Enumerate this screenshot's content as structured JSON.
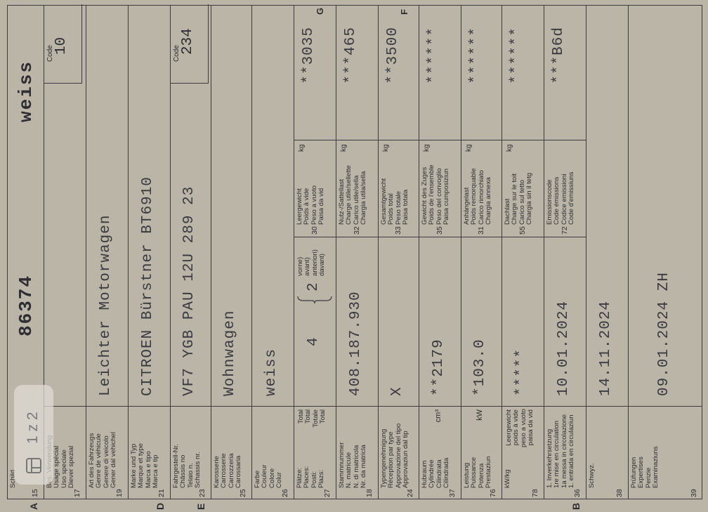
{
  "document": {
    "margin_marks": [
      "G",
      "F"
    ],
    "rows": [
      {
        "letter": "A",
        "number": "15",
        "label": [
          "Schild"
        ],
        "value": "86374",
        "extra": "weiss"
      },
      {
        "number": "17",
        "label": [
          "Bes. Verwendung",
          "Usage spécial",
          "Uso speciale",
          "Diever spezial"
        ],
        "code": {
          "label": "Code",
          "value": "10"
        }
      },
      {
        "number": "19",
        "label": [
          "Art des Fahrzeugs",
          "Genre de véhicule",
          "Genere di veicolo",
          "Gener dal vehichel"
        ],
        "value": "Leichter Motorwagen"
      },
      {
        "letter": "D",
        "number": "21",
        "label": [
          "Marke und Typ",
          "Marque et type",
          "Marca e tipo",
          "Marca e tip"
        ],
        "value": "CITROEN Bürstner BT6910"
      },
      {
        "letter": "E",
        "number": "23",
        "label": [
          "Fahrgestell-Nr.",
          "Châssis no",
          "Telaio n.",
          "Schassis nr."
        ],
        "value": "VF7 YGB PAU 12U 289 23",
        "code": {
          "label": "Code",
          "value": "234"
        }
      },
      {
        "number": "25",
        "label": [
          "Karosserie",
          "Carrosserie",
          "Carrozzeria",
          "Carossaria"
        ],
        "value": "Wohnwagen"
      },
      {
        "number": "26",
        "label": [
          "Farbe",
          "Couleur",
          "Colore",
          "Colur"
        ],
        "value": "weiss"
      },
      {
        "number": "27",
        "label": [
          "Plätze:",
          "Places:",
          "Posti:",
          "Plazs:"
        ],
        "label2": [
          "Total",
          "Total",
          "Totale",
          "Total"
        ],
        "value": "4",
        "front": {
          "value": "2",
          "label": [
            "vorne)",
            "avant)",
            "anteriori)",
            "davant)"
          ]
        },
        "right": {
          "number": "30",
          "label": [
            "Leergewicht",
            "Poids à vide",
            "Peso a vuoto",
            "Paisa da vid"
          ],
          "unit": "kg",
          "value": "**3035"
        }
      },
      {
        "number": "18",
        "label": [
          "Stammnummer",
          "N. matricule",
          "N. di matricola",
          "Nr. da matricla"
        ],
        "value": "408.187.930",
        "right": {
          "number": "32",
          "label": [
            "Nutz-/Sattellast",
            "Charge utile/sellette",
            "Carico utile/sella",
            "Chargia utila/sella"
          ],
          "unit": "kg",
          "value": "***465"
        }
      },
      {
        "number": "24",
        "label": [
          "Typengenehmigung",
          "Réception par type",
          "Approvazione del tipo",
          "Approvaziun dal tip"
        ],
        "value": "X",
        "right": {
          "number": "33",
          "label": [
            "Gesamtgewicht",
            "Poids total",
            "Peso totale",
            "Paisa totala"
          ],
          "unit": "kg",
          "value": "**3500"
        }
      },
      {
        "number": "37",
        "label": [
          "Hubraum",
          "Cylindrée",
          "Cilindrata",
          "Cilindrada"
        ],
        "unit": "cm³",
        "value": "**2179",
        "right": {
          "number": "35",
          "label": [
            "Gewicht des Zuges",
            "Poids de l'ensemble",
            "Peso del convoglio",
            "Paisa cumposiziun"
          ],
          "unit": "kg",
          "value": "******"
        }
      },
      {
        "number": "76",
        "label": [
          "Leistung",
          "Puissance",
          "Potenza",
          "Prestaziun"
        ],
        "unit": "kW",
        "value": "*103.0",
        "right": {
          "number": "31",
          "label": [
            "Anhängelast",
            "Poids remorquable",
            "Carico rimorchiato",
            "Chargia annexa"
          ],
          "unit": "kg",
          "value": "******"
        }
      },
      {
        "number": "78",
        "label": [
          "kW/kg"
        ],
        "label2": [
          "Leergewicht",
          "poids à vide",
          "peso a vuoto",
          "paisa da vid"
        ],
        "value": "*****",
        "right": {
          "number": "55",
          "label": [
            "Dachlast",
            "Charge sur le toit",
            "Carico sul tetto",
            "Chargia sin il tetg"
          ],
          "unit": "kg",
          "value": "******"
        }
      },
      {
        "letter": "B",
        "number": "36",
        "label": [
          "1. Inverkehrsetzung",
          "1re mise en circulation",
          "1a messa in circolazione",
          "1. entrada en circulaziun"
        ],
        "value": "10.01.2024",
        "right": {
          "number": "72",
          "label": [
            "Emissionscode",
            "Code émissions",
            "Codice emissioni",
            "Code d'emissiuns"
          ],
          "value": "***B6d"
        }
      },
      {
        "number": "38",
        "label": [
          "Schwyz."
        ],
        "value": "14.11.2024"
      },
      {
        "number": "39",
        "label": [
          "Prüfungen",
          "Expertises",
          "Perizie",
          "Examinaziuns"
        ],
        "value": "09.01.2024 ZH"
      }
    ],
    "viewer": {
      "page_indicator": "1 z 2"
    }
  }
}
